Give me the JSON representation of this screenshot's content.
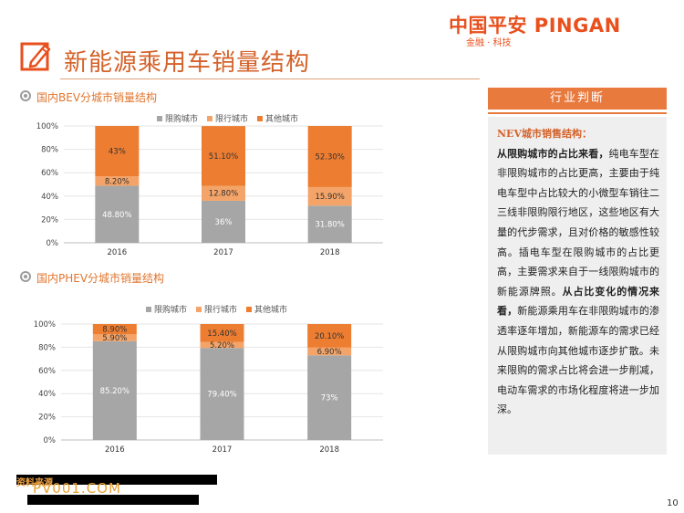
{
  "header": {
    "title": "新能源乘用车销量结构",
    "logo_main": "中国平安 PINGAN",
    "logo_sub": "金融 · 科技",
    "icon": "pencil-edit-icon"
  },
  "sections": {
    "bev_title": "国内BEV分城市销量结构",
    "phev_title": "国内PHEV分城市销量结构"
  },
  "colors": {
    "restricted": "#a6a6a6",
    "limited": "#f4a468",
    "other": "#ed7d31",
    "accent": "#e8501d",
    "panel_header": "#e87a3e"
  },
  "chart_data": [
    {
      "type": "bar",
      "stacked": true,
      "title": "",
      "categories": [
        "2016",
        "2017",
        "2018"
      ],
      "series": [
        {
          "name": "限购城市",
          "values": [
            48.8,
            36,
            31.8
          ],
          "labels": [
            "48.80%",
            "36%",
            "31.80%"
          ]
        },
        {
          "name": "限行城市",
          "values": [
            8.2,
            12.8,
            15.9
          ],
          "labels": [
            "8.20%",
            "12.80%",
            "15.90%"
          ]
        },
        {
          "name": "其他城市",
          "values": [
            43,
            51.1,
            52.3
          ],
          "labels": [
            "43%",
            "51.10%",
            "52.30%"
          ]
        }
      ],
      "yticks": [
        "0%",
        "20%",
        "40%",
        "60%",
        "80%",
        "100%"
      ],
      "ylim": [
        0,
        100
      ],
      "legend": "top"
    },
    {
      "type": "bar",
      "stacked": true,
      "title": "",
      "categories": [
        "2016",
        "2017",
        "2018"
      ],
      "series": [
        {
          "name": "限购城市",
          "values": [
            85.2,
            79.4,
            73
          ],
          "labels": [
            "85.20%",
            "79.40%",
            "73%"
          ]
        },
        {
          "name": "限行城市",
          "values": [
            5.9,
            5.2,
            6.9
          ],
          "labels": [
            "5.90%",
            "5.20%",
            "6.90%"
          ]
        },
        {
          "name": "其他城市",
          "values": [
            8.9,
            15.4,
            20.1
          ],
          "labels": [
            "8.90%",
            "15.40%",
            "20.10%"
          ]
        }
      ],
      "yticks": [
        "0%",
        "20%",
        "40%",
        "60%",
        "80%",
        "100%"
      ],
      "ylim": [
        0,
        100
      ],
      "legend": "top"
    }
  ],
  "panel": {
    "header": "行业判断",
    "nev_title": "NEV城市销售结构：",
    "p1_bold": "从限购城市的占比来看，",
    "p1_text": "纯电车型在非限购城市的占比更高，主要由于纯电车型中占比较大的小微型车销往二三线非限购限行地区，这些地区有大量的代步需求，且对价格的敏感性较高。插电车型在限购城市的占比更高，主要需求来自于一线限购城市的新能源牌照。",
    "p2_bold": "从占比变化的情况来看，",
    "p2_text": "新能源乘用车在非限购城市的渗透率逐年增加，新能源车的需求已经从限购城市向其他城市逐步扩散。未来限购的需求占比将会进一步削减，电动车需求的市场化程度将进一步加深。"
  },
  "footer": {
    "source_label": "资料来源",
    "watermark": "PV001.COM",
    "page_number": "10"
  }
}
